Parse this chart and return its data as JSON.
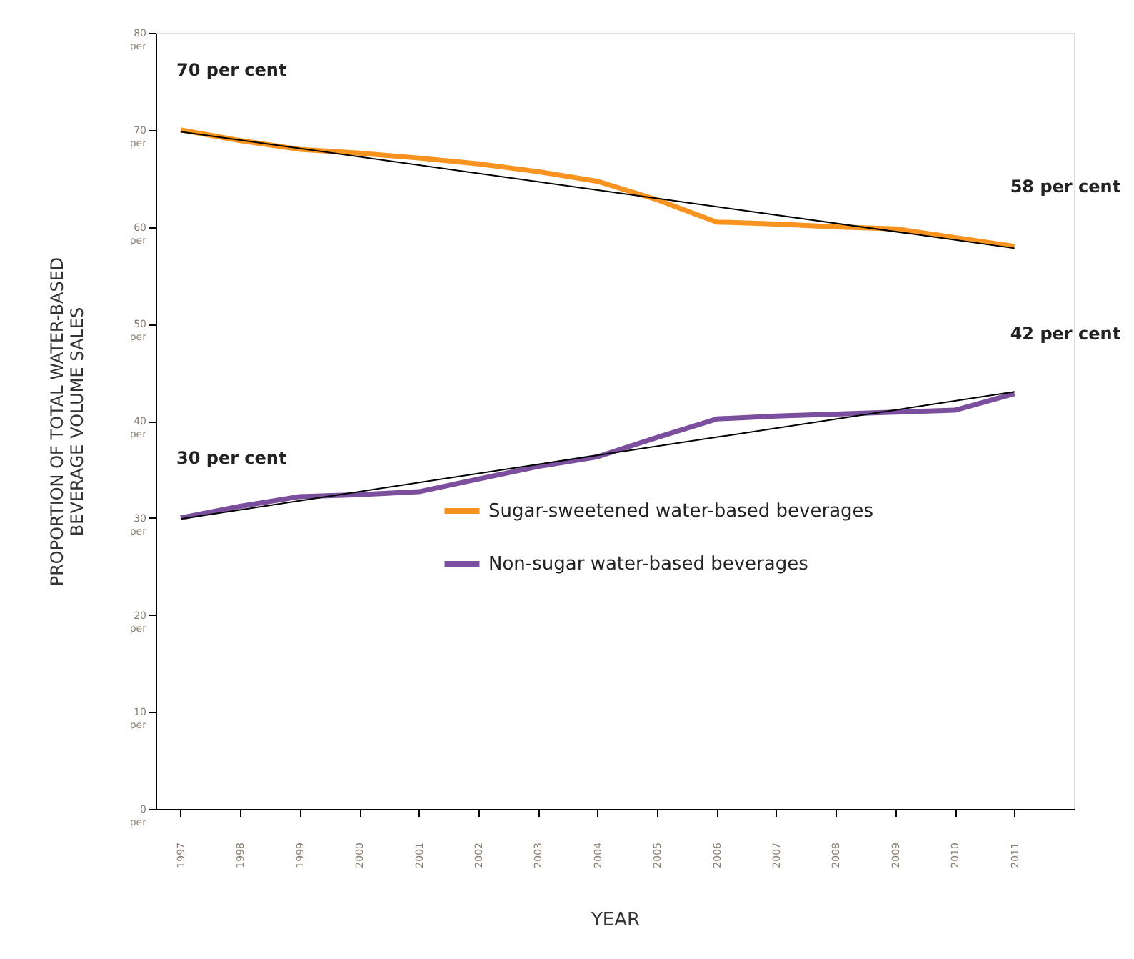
{
  "chart_data": {
    "type": "line",
    "xlabel": "YEAR",
    "ylabel": "PROPORTION OF TOTAL WATER-BASED\nBEVERAGE VOLUME SALES",
    "x": [
      "1997",
      "1998",
      "1999",
      "2000",
      "2001",
      "2002",
      "2003",
      "2004",
      "2005",
      "2006",
      "2007",
      "2008",
      "2009",
      "2010",
      "2011"
    ],
    "series": [
      {
        "name": "Sugar-sweetened water-based beverages",
        "color": "#f7931e",
        "values": [
          70.0,
          68.9,
          68.0,
          67.6,
          67.1,
          66.5,
          65.7,
          64.7,
          62.8,
          60.5,
          60.3,
          60.0,
          59.8,
          58.9,
          58.0
        ]
      },
      {
        "name": "Non-sugar water-based beverages",
        "color": "#7b4f9d",
        "values": [
          30.0,
          31.2,
          32.2,
          32.4,
          32.7,
          34.0,
          35.3,
          36.3,
          38.3,
          40.2,
          40.5,
          40.7,
          40.9,
          41.1,
          42.8
        ]
      },
      {
        "type": "line",
        "color": "#000000",
        "x": [
          "1997",
          "2011"
        ],
        "values": [
          69.8,
          57.8
        ]
      },
      {
        "type": "line",
        "color": "#000000",
        "x": [
          "1997",
          "2011"
        ],
        "values": [
          29.9,
          43.0
        ]
      }
    ],
    "xlim": [
      "1996-08",
      "2012-01"
    ],
    "xticks": [
      "1997",
      "1998",
      "1999",
      "2000",
      "2001",
      "2002",
      "2003",
      "2004",
      "2005",
      "2006",
      "2007",
      "2008",
      "2009",
      "2010",
      "2011"
    ],
    "ylim": [
      0,
      80
    ],
    "yticks": [
      {
        "value": 0,
        "label": "0 per"
      },
      {
        "value": 10,
        "label": "10 per"
      },
      {
        "value": 20,
        "label": "20 per"
      },
      {
        "value": 30,
        "label": "30 per"
      },
      {
        "value": 40,
        "label": "40 per"
      },
      {
        "value": 50,
        "label": "50 per"
      },
      {
        "value": 60,
        "label": "60 per"
      },
      {
        "value": 70,
        "label": "70 per"
      },
      {
        "value": 80,
        "label": "80 per"
      }
    ],
    "annotations": [
      {
        "text": "70 per cent",
        "x": "1997",
        "y": 70.0
      },
      {
        "text": "58 per cent",
        "x": "2011",
        "y": 58.0
      },
      {
        "text": "30 per cent",
        "x": "1997",
        "y": 30.0
      },
      {
        "text": "42 per cent",
        "x": "2011",
        "y": 42.8
      }
    ],
    "legend": "bottom",
    "grid": false,
    "marker": "none",
    "line_style": "solid"
  }
}
